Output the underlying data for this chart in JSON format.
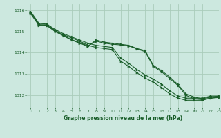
{
  "title": "Graphe pression niveau de la mer (hPa)",
  "background_color": "#cce8df",
  "grid_color": "#aaccbb",
  "line_color": "#1a5e2a",
  "xlim": [
    -0.5,
    23
  ],
  "ylim": [
    1011.4,
    1016.3
  ],
  "yticks": [
    1012,
    1013,
    1014,
    1015,
    1016
  ],
  "xticks": [
    0,
    1,
    2,
    3,
    4,
    5,
    6,
    7,
    8,
    9,
    10,
    11,
    12,
    13,
    14,
    15,
    16,
    17,
    18,
    19,
    20,
    21,
    22,
    23
  ],
  "series": [
    [
      1015.9,
      1015.35,
      1015.35,
      1015.05,
      1014.85,
      1014.7,
      1014.55,
      1014.35,
      1014.25,
      1014.2,
      1014.15,
      1013.6,
      1013.35,
      1013.05,
      1012.8,
      1012.6,
      1012.35,
      1012.05,
      1011.85,
      1011.75,
      1011.75,
      1011.75,
      1011.85,
      1011.9
    ],
    [
      1015.95,
      1015.4,
      1015.35,
      1015.1,
      1014.9,
      1014.75,
      1014.6,
      1014.45,
      1014.35,
      1014.3,
      1014.25,
      1013.75,
      1013.5,
      1013.2,
      1012.95,
      1012.75,
      1012.5,
      1012.2,
      1011.95,
      1011.85,
      1011.85,
      1011.85,
      1011.95,
      1011.95
    ],
    [
      1015.85,
      1015.3,
      1015.28,
      1015.0,
      1014.8,
      1014.6,
      1014.45,
      1014.3,
      1014.6,
      1014.5,
      1014.45,
      1014.4,
      1014.35,
      1014.2,
      1014.1,
      1013.4,
      1013.15,
      1012.85,
      1012.5,
      1012.05,
      1011.9,
      1011.82,
      1011.9,
      1011.95
    ],
    [
      1015.9,
      1015.32,
      1015.3,
      1015.02,
      1014.82,
      1014.62,
      1014.48,
      1014.32,
      1014.55,
      1014.45,
      1014.4,
      1014.37,
      1014.32,
      1014.18,
      1014.05,
      1013.35,
      1013.1,
      1012.78,
      1012.45,
      1011.98,
      1011.82,
      1011.78,
      1011.85,
      1011.88
    ]
  ]
}
